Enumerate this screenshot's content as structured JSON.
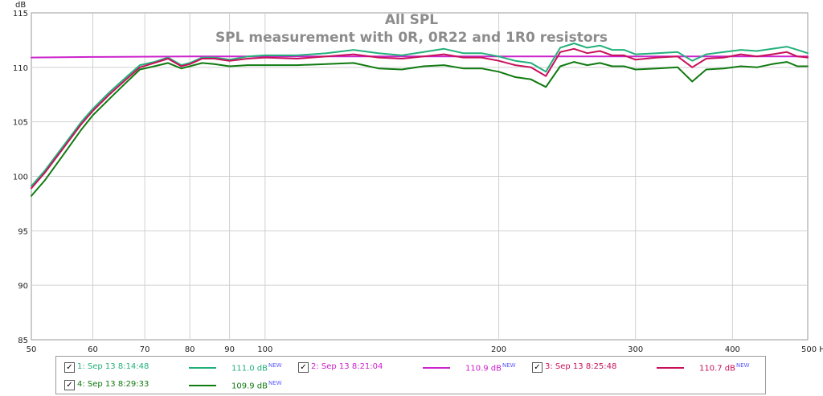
{
  "chart_data": {
    "type": "line",
    "title": "All SPL",
    "subtitle": "SPL measurement with 0R, 0R22 and 1R0 resistors",
    "ylabel": "dB",
    "xlabel": "Hz",
    "x_scale": "log",
    "xlim": [
      50,
      500
    ],
    "ylim": [
      85,
      115
    ],
    "grid": true,
    "x_ticks": [
      50,
      60,
      70,
      80,
      90,
      100,
      200,
      300,
      400,
      500
    ],
    "x_tick_labels": [
      "50",
      "60",
      "70",
      "80",
      "90",
      "100",
      "200",
      "300",
      "400",
      "500 Hz"
    ],
    "y_ticks": [
      85,
      90,
      95,
      100,
      105,
      110,
      115
    ],
    "legend_position": "bottom",
    "series": [
      {
        "name": "1: Sep 13 8:14:48",
        "color": "#22b07a",
        "legend_value": "111.0 dB",
        "points": [
          [
            50,
            99.1
          ],
          [
            52,
            100.5
          ],
          [
            55,
            102.8
          ],
          [
            58,
            105.0
          ],
          [
            60,
            106.2
          ],
          [
            63,
            107.7
          ],
          [
            66,
            109.0
          ],
          [
            69,
            110.2
          ],
          [
            72,
            110.5
          ],
          [
            75,
            110.9
          ],
          [
            78,
            110.2
          ],
          [
            80,
            110.4
          ],
          [
            83,
            110.9
          ],
          [
            86,
            110.9
          ],
          [
            90,
            110.7
          ],
          [
            95,
            111.0
          ],
          [
            100,
            111.1
          ],
          [
            110,
            111.1
          ],
          [
            120,
            111.3
          ],
          [
            130,
            111.6
          ],
          [
            140,
            111.3
          ],
          [
            150,
            111.1
          ],
          [
            160,
            111.4
          ],
          [
            170,
            111.7
          ],
          [
            180,
            111.3
          ],
          [
            190,
            111.3
          ],
          [
            200,
            111.0
          ],
          [
            210,
            110.6
          ],
          [
            220,
            110.4
          ],
          [
            230,
            109.6
          ],
          [
            240,
            111.8
          ],
          [
            250,
            112.2
          ],
          [
            260,
            111.8
          ],
          [
            270,
            112.0
          ],
          [
            280,
            111.6
          ],
          [
            290,
            111.6
          ],
          [
            300,
            111.2
          ],
          [
            320,
            111.3
          ],
          [
            340,
            111.4
          ],
          [
            355,
            110.6
          ],
          [
            370,
            111.2
          ],
          [
            390,
            111.4
          ],
          [
            410,
            111.6
          ],
          [
            430,
            111.5
          ],
          [
            450,
            111.7
          ],
          [
            470,
            111.9
          ],
          [
            485,
            111.6
          ],
          [
            500,
            111.3
          ]
        ]
      },
      {
        "name": "2: Sep 13 8:21:04",
        "color": "#cc22cc",
        "legend_value": "110.9 dB",
        "points": [
          [
            50,
            110.9
          ],
          [
            60,
            110.95
          ],
          [
            80,
            111.0
          ],
          [
            100,
            111.0
          ],
          [
            150,
            111.0
          ],
          [
            200,
            111.0
          ],
          [
            300,
            111.0
          ],
          [
            400,
            111.0
          ],
          [
            500,
            111.0
          ]
        ]
      },
      {
        "name": "3: Sep 13 8:25:48",
        "color": "#c8105a",
        "legend_value": "110.7 dB",
        "points": [
          [
            50,
            98.9
          ],
          [
            52,
            100.3
          ],
          [
            55,
            102.6
          ],
          [
            58,
            104.8
          ],
          [
            60,
            106.0
          ],
          [
            63,
            107.5
          ],
          [
            66,
            108.8
          ],
          [
            69,
            110.0
          ],
          [
            72,
            110.4
          ],
          [
            75,
            110.8
          ],
          [
            78,
            110.1
          ],
          [
            80,
            110.3
          ],
          [
            83,
            110.8
          ],
          [
            86,
            110.8
          ],
          [
            90,
            110.6
          ],
          [
            95,
            110.8
          ],
          [
            100,
            110.9
          ],
          [
            110,
            110.8
          ],
          [
            120,
            111.0
          ],
          [
            130,
            111.2
          ],
          [
            140,
            110.9
          ],
          [
            150,
            110.8
          ],
          [
            160,
            111.0
          ],
          [
            170,
            111.2
          ],
          [
            180,
            110.9
          ],
          [
            190,
            110.9
          ],
          [
            200,
            110.6
          ],
          [
            210,
            110.2
          ],
          [
            220,
            110.0
          ],
          [
            230,
            109.2
          ],
          [
            240,
            111.4
          ],
          [
            250,
            111.7
          ],
          [
            260,
            111.3
          ],
          [
            270,
            111.5
          ],
          [
            280,
            111.1
          ],
          [
            290,
            111.1
          ],
          [
            300,
            110.7
          ],
          [
            320,
            110.9
          ],
          [
            340,
            111.0
          ],
          [
            355,
            110.0
          ],
          [
            370,
            110.8
          ],
          [
            390,
            110.9
          ],
          [
            410,
            111.2
          ],
          [
            430,
            111.0
          ],
          [
            450,
            111.2
          ],
          [
            470,
            111.4
          ],
          [
            485,
            111.0
          ],
          [
            500,
            110.9
          ]
        ]
      },
      {
        "name": "4: Sep 13 8:29:33",
        "color": "#0f7a10",
        "legend_value": "109.9 dB",
        "points": [
          [
            50,
            98.2
          ],
          [
            52,
            99.6
          ],
          [
            55,
            102.0
          ],
          [
            58,
            104.3
          ],
          [
            60,
            105.6
          ],
          [
            63,
            107.1
          ],
          [
            66,
            108.5
          ],
          [
            69,
            109.8
          ],
          [
            72,
            110.1
          ],
          [
            75,
            110.4
          ],
          [
            78,
            109.9
          ],
          [
            80,
            110.1
          ],
          [
            83,
            110.4
          ],
          [
            86,
            110.3
          ],
          [
            90,
            110.1
          ],
          [
            95,
            110.2
          ],
          [
            100,
            110.2
          ],
          [
            110,
            110.2
          ],
          [
            120,
            110.3
          ],
          [
            130,
            110.4
          ],
          [
            140,
            109.9
          ],
          [
            150,
            109.8
          ],
          [
            160,
            110.1
          ],
          [
            170,
            110.2
          ],
          [
            180,
            109.9
          ],
          [
            190,
            109.9
          ],
          [
            200,
            109.6
          ],
          [
            210,
            109.1
          ],
          [
            220,
            108.9
          ],
          [
            230,
            108.2
          ],
          [
            240,
            110.1
          ],
          [
            250,
            110.5
          ],
          [
            260,
            110.2
          ],
          [
            270,
            110.4
          ],
          [
            280,
            110.1
          ],
          [
            290,
            110.1
          ],
          [
            300,
            109.8
          ],
          [
            320,
            109.9
          ],
          [
            340,
            110.0
          ],
          [
            355,
            108.7
          ],
          [
            370,
            109.8
          ],
          [
            390,
            109.9
          ],
          [
            410,
            110.1
          ],
          [
            430,
            110.0
          ],
          [
            450,
            110.3
          ],
          [
            470,
            110.5
          ],
          [
            485,
            110.1
          ],
          [
            500,
            110.1
          ]
        ]
      }
    ]
  },
  "legend": {
    "new_tag": "NEW",
    "check_mark": "✓"
  }
}
